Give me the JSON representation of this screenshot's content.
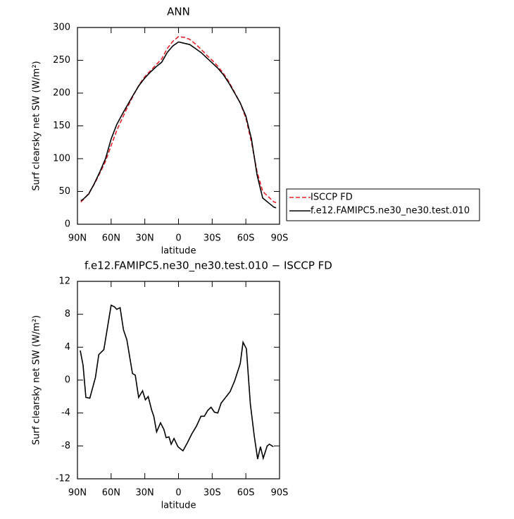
{
  "chart_data": [
    {
      "type": "line",
      "title": "ANN",
      "xlabel": "latitude",
      "ylabel": "Surf clearsky net SW (W/m²)",
      "xlim": [
        90,
        -90
      ],
      "ylim": [
        0,
        300
      ],
      "xticks": [
        {
          "value": 90,
          "label": "90N"
        },
        {
          "value": 60,
          "label": "60N"
        },
        {
          "value": 30,
          "label": "30N"
        },
        0,
        {
          "value": -30,
          "label": "30S"
        },
        {
          "value": -60,
          "label": "60S"
        },
        {
          "value": -90,
          "label": "90S"
        }
      ],
      "yticks": [
        0,
        50,
        100,
        150,
        200,
        250,
        300
      ],
      "legend": "right",
      "x": [
        87,
        85,
        80,
        75,
        70,
        65,
        60,
        55,
        50,
        45,
        40,
        35,
        30,
        25,
        20,
        15,
        10,
        5,
        0,
        -5,
        -10,
        -15,
        -20,
        -25,
        -30,
        -35,
        -40,
        -45,
        -50,
        -55,
        -60,
        -65,
        -70,
        -75,
        -80,
        -85,
        -87
      ],
      "series": [
        {
          "name": "ISCCP FD",
          "color": "#e8222a",
          "line_style": "dashed",
          "values": [
            34,
            37,
            47,
            61,
            78,
            96,
            120,
            143,
            162,
            180,
            197,
            213,
            225,
            234,
            243,
            252,
            268,
            279,
            286,
            285,
            282,
            275,
            267,
            258,
            250,
            241,
            230,
            217,
            201,
            185,
            162,
            125,
            80,
            50,
            42,
            34,
            33
          ]
        },
        {
          "name": "f.e12.FAMIPC5.ne30_ne30.test.010",
          "color": "#000000",
          "line_style": "solid",
          "values": [
            36,
            38,
            46,
            62,
            80,
            100,
            130,
            152,
            168,
            183,
            198,
            212,
            223,
            232,
            240,
            247,
            262,
            272,
            278,
            276,
            274,
            268,
            262,
            254,
            246,
            238,
            228,
            215,
            200,
            185,
            165,
            130,
            75,
            40,
            33,
            26,
            25
          ]
        }
      ]
    },
    {
      "type": "line",
      "title": "f.e12.FAMIPC5.ne30_ne30.test.010 − ISCCP FD",
      "xlabel": "latitude",
      "ylabel": "Surf clearsky net SW (W/m²)",
      "xlim": [
        90,
        -90
      ],
      "ylim": [
        -12,
        12
      ],
      "xticks": [
        {
          "value": 90,
          "label": "90N"
        },
        {
          "value": 60,
          "label": "60N"
        },
        {
          "value": 30,
          "label": "30N"
        },
        0,
        {
          "value": -30,
          "label": "30S"
        },
        {
          "value": -60,
          "label": "60S"
        },
        {
          "value": -90,
          "label": "90S"
        }
      ],
      "yticks": [
        -12,
        -8,
        -4,
        0,
        4,
        8,
        12
      ],
      "x": [
        87.5,
        85,
        82.5,
        79,
        74,
        71,
        66.5,
        60,
        57,
        55,
        52,
        49,
        46,
        41,
        38.5,
        35.5,
        32,
        29.5,
        27,
        24,
        22,
        19.5,
        16,
        13,
        11,
        8.5,
        6.5,
        4,
        0.5,
        -4,
        -8,
        -12,
        -16,
        -20,
        -23,
        -26,
        -29,
        -32,
        -35,
        -38,
        -42,
        -46,
        -50,
        -55,
        -57.5,
        -60.5,
        -64,
        -67.5,
        -70.5,
        -73,
        -75.5,
        -79,
        -81,
        -84.5
      ],
      "series": [
        {
          "color": "#000000",
          "line_style": "solid",
          "values": [
            3.6,
            1.8,
            -2.1,
            -2.2,
            0.3,
            3.1,
            3.7,
            9.1,
            8.9,
            8.6,
            8.8,
            6.1,
            4.9,
            0.8,
            0.6,
            -2.1,
            -1.3,
            -2.4,
            -2,
            -3.6,
            -4.4,
            -6.3,
            -5.2,
            -6,
            -7,
            -6.9,
            -7.8,
            -7.1,
            -8.1,
            -8.6,
            -7.6,
            -6.5,
            -5.6,
            -4.4,
            -4.4,
            -3.7,
            -3.3,
            -3.9,
            -4.0,
            -2.8,
            -2.1,
            -1.4,
            -0.1,
            2.0,
            4.6,
            3.8,
            -2.9,
            -6.8,
            -9.6,
            -8.1,
            -9.5,
            -8.0,
            -7.8,
            -8.1
          ]
        }
      ]
    }
  ]
}
